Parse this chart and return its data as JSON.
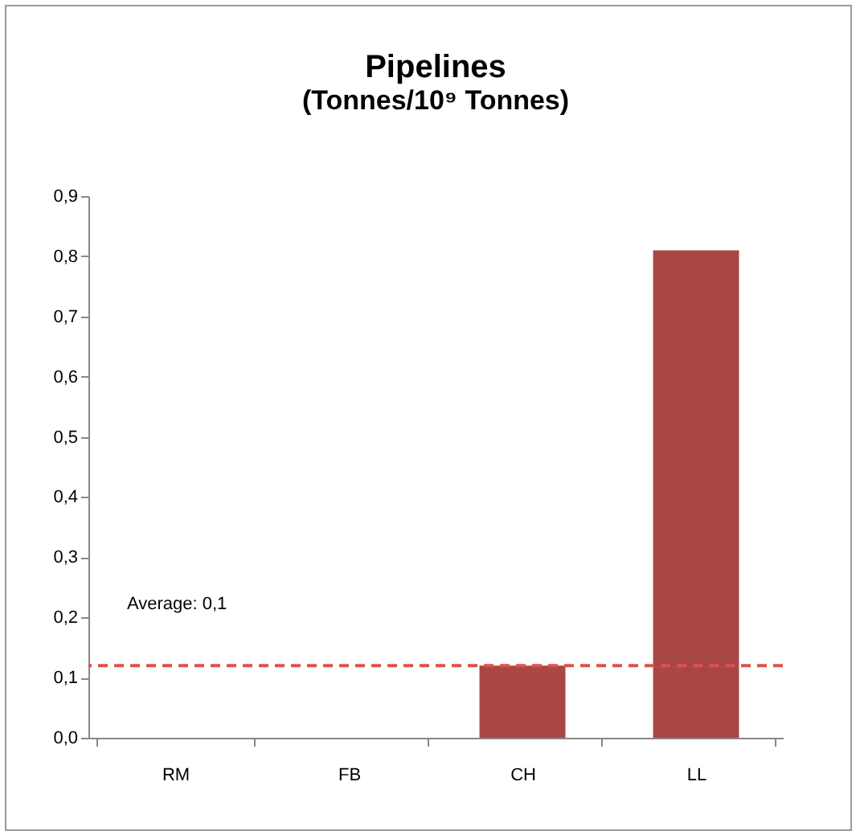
{
  "chart_data": {
    "type": "bar",
    "title": "Pipelines",
    "subtitle": "(Tonnes/10⁹ Tonnes)",
    "categories": [
      "RM",
      "FB",
      "CH",
      "LL"
    ],
    "values": [
      0,
      0,
      0.12,
      0.81
    ],
    "color": "#a94744",
    "ylim": [
      0,
      0.9
    ],
    "yticks": [
      {
        "value": 0,
        "label": "0,0"
      },
      {
        "value": 0.1,
        "label": "0,1"
      },
      {
        "value": 0.2,
        "label": "0,2"
      },
      {
        "value": 0.3,
        "label": "0,3"
      },
      {
        "value": 0.4,
        "label": "0,4"
      },
      {
        "value": 0.5,
        "label": "0,5"
      },
      {
        "value": 0.6,
        "label": "0,6"
      },
      {
        "value": 0.7,
        "label": "0,7"
      },
      {
        "value": 0.8,
        "label": "0,8"
      },
      {
        "value": 0.9,
        "label": "0,9"
      }
    ],
    "ref_lines": [
      {
        "axis": "y",
        "value": 0.12,
        "label": "Average: 0,1",
        "color": "#d9534f",
        "line_style": "dashed"
      }
    ],
    "grid": false
  }
}
